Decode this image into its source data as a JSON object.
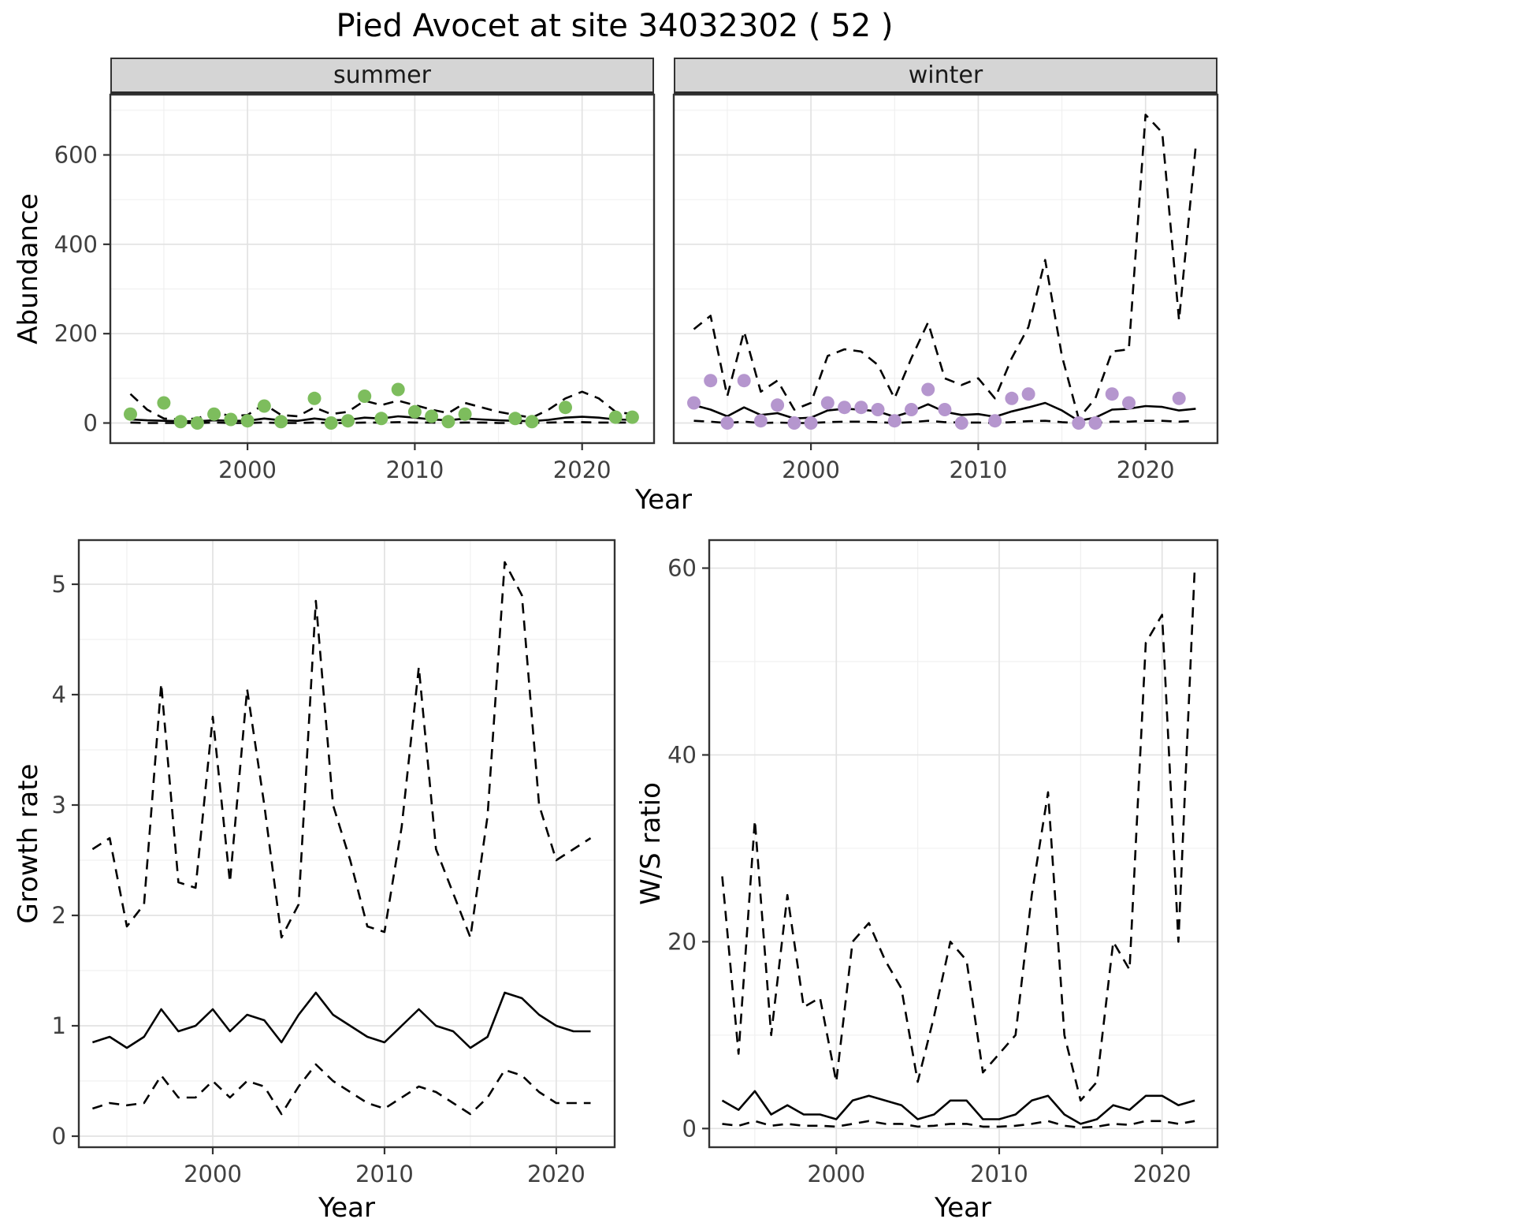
{
  "title": "Pied Avocet at site 34032302 ( 52 )",
  "colors": {
    "summer_points": "#7dbd5d",
    "winter_points": "#b596ce",
    "line": "#000000",
    "grid_major": "#e2e2e2",
    "grid_minor": "#f0f0f0",
    "strip_bg": "#d5d5d5",
    "panel_border": "#333333",
    "tick_label": "#404040"
  },
  "chart_data": [
    {
      "id": "abundance-summer",
      "type": "line",
      "facet_label": "summer",
      "xlabel": "Year",
      "ylabel": "Abundance",
      "xlim": [
        1991.8,
        2024.3
      ],
      "ylim": [
        -45,
        735
      ],
      "xticks": [
        2000,
        2010,
        2020
      ],
      "yticks": [
        0,
        200,
        400,
        600
      ],
      "grid": true,
      "legend": "none",
      "x": [
        1993,
        1994,
        1995,
        1996,
        1997,
        1998,
        1999,
        2000,
        2001,
        2002,
        2003,
        2004,
        2005,
        2006,
        2007,
        2008,
        2009,
        2010,
        2011,
        2012,
        2013,
        2014,
        2015,
        2016,
        2017,
        2018,
        2019,
        2020,
        2021,
        2022,
        2023
      ],
      "series": [
        {
          "name": "upper-ci",
          "style": "dashed",
          "y": [
            65,
            30,
            10,
            8,
            10,
            25,
            15,
            18,
            42,
            18,
            15,
            35,
            20,
            25,
            50,
            40,
            50,
            40,
            30,
            22,
            45,
            35,
            25,
            18,
            12,
            30,
            55,
            70,
            55,
            25,
            20
          ]
        },
        {
          "name": "model-median",
          "style": "solid",
          "y": [
            8,
            6,
            5,
            4,
            4,
            6,
            5,
            5,
            10,
            6,
            5,
            10,
            6,
            7,
            12,
            10,
            15,
            12,
            8,
            6,
            10,
            8,
            6,
            5,
            4,
            7,
            12,
            14,
            12,
            8,
            7
          ]
        },
        {
          "name": "lower-ci",
          "style": "dashed",
          "y": [
            1,
            0,
            0,
            0,
            0,
            1,
            0,
            0,
            1,
            0,
            0,
            1,
            0,
            0,
            1,
            1,
            2,
            1,
            1,
            0,
            1,
            1,
            0,
            0,
            0,
            1,
            2,
            2,
            1,
            1,
            1
          ]
        }
      ],
      "points": [
        {
          "name": "observed-summer-counts",
          "color_key": "summer_points",
          "x": [
            1993,
            1995,
            1996,
            1997,
            1998,
            1999,
            2000,
            2001,
            2002,
            2004,
            2005,
            2006,
            2007,
            2008,
            2009,
            2010,
            2011,
            2012,
            2013,
            2016,
            2017,
            2019,
            2022,
            2023
          ],
          "y": [
            20,
            45,
            3,
            0,
            20,
            8,
            5,
            38,
            3,
            55,
            0,
            5,
            60,
            10,
            75,
            25,
            15,
            3,
            20,
            10,
            3,
            35,
            13,
            13
          ]
        }
      ]
    },
    {
      "id": "abundance-winter",
      "type": "line",
      "facet_label": "winter",
      "xlabel": "Year",
      "ylabel": "Abundance",
      "xlim": [
        1991.8,
        2024.3
      ],
      "ylim": [
        -45,
        735
      ],
      "xticks": [
        2000,
        2010,
        2020
      ],
      "yticks": [
        0,
        200,
        400,
        600
      ],
      "grid": true,
      "legend": "none",
      "x": [
        1993,
        1994,
        1995,
        1996,
        1997,
        1998,
        1999,
        2000,
        2001,
        2002,
        2003,
        2004,
        2005,
        2006,
        2007,
        2008,
        2009,
        2010,
        2011,
        2012,
        2013,
        2014,
        2015,
        2016,
        2017,
        2018,
        2019,
        2020,
        2021,
        2022,
        2023
      ],
      "series": [
        {
          "name": "upper-ci",
          "style": "dashed",
          "y": [
            210,
            240,
            60,
            205,
            70,
            95,
            30,
            45,
            150,
            165,
            160,
            130,
            55,
            145,
            225,
            100,
            85,
            100,
            55,
            145,
            215,
            365,
            150,
            10,
            55,
            160,
            165,
            690,
            650,
            230,
            620
          ]
        },
        {
          "name": "model-median",
          "style": "solid",
          "y": [
            40,
            30,
            15,
            35,
            18,
            22,
            10,
            12,
            28,
            32,
            30,
            26,
            14,
            26,
            42,
            25,
            18,
            20,
            14,
            26,
            35,
            45,
            28,
            5,
            12,
            30,
            32,
            38,
            36,
            28,
            32
          ]
        },
        {
          "name": "lower-ci",
          "style": "dashed",
          "y": [
            5,
            3,
            0,
            3,
            0,
            1,
            0,
            0,
            2,
            3,
            3,
            2,
            0,
            2,
            5,
            2,
            1,
            1,
            0,
            2,
            4,
            5,
            2,
            0,
            0,
            3,
            3,
            5,
            5,
            3,
            5
          ]
        }
      ],
      "points": [
        {
          "name": "observed-winter-counts",
          "color_key": "winter_points",
          "x": [
            1993,
            1994,
            1995,
            1996,
            1997,
            1998,
            1999,
            2000,
            2001,
            2002,
            2003,
            2004,
            2005,
            2006,
            2007,
            2008,
            2009,
            2011,
            2012,
            2013,
            2016,
            2017,
            2018,
            2019,
            2022
          ],
          "y": [
            45,
            95,
            0,
            95,
            5,
            40,
            0,
            0,
            45,
            35,
            35,
            30,
            5,
            30,
            75,
            30,
            0,
            5,
            55,
            65,
            0,
            0,
            65,
            45,
            55
          ]
        }
      ]
    },
    {
      "id": "growth-rate",
      "type": "line",
      "facet_label": "",
      "xlabel": "Year",
      "ylabel": "Growth rate",
      "xlim": [
        1992.2,
        2023.4
      ],
      "ylim": [
        -0.1,
        5.4
      ],
      "xticks": [
        2000,
        2010,
        2020
      ],
      "yticks": [
        0,
        1,
        2,
        3,
        4,
        5
      ],
      "grid": true,
      "legend": "none",
      "x": [
        1993,
        1994,
        1995,
        1996,
        1997,
        1998,
        1999,
        2000,
        2001,
        2002,
        2003,
        2004,
        2005,
        2006,
        2007,
        2008,
        2009,
        2010,
        2011,
        2012,
        2013,
        2014,
        2015,
        2016,
        2017,
        2018,
        2019,
        2020,
        2021,
        2022
      ],
      "series": [
        {
          "name": "upper-ci",
          "style": "dashed",
          "y": [
            2.6,
            2.7,
            1.9,
            2.1,
            4.1,
            2.3,
            2.25,
            3.8,
            2.3,
            4.05,
            3.0,
            1.8,
            2.1,
            4.85,
            3.0,
            2.5,
            1.9,
            1.85,
            2.8,
            4.25,
            2.6,
            2.2,
            1.8,
            2.9,
            5.2,
            4.9,
            3.0,
            2.5,
            2.6,
            2.7
          ]
        },
        {
          "name": "model-median",
          "style": "solid",
          "y": [
            0.85,
            0.9,
            0.8,
            0.9,
            1.15,
            0.95,
            1.0,
            1.15,
            0.95,
            1.1,
            1.05,
            0.85,
            1.1,
            1.3,
            1.1,
            1.0,
            0.9,
            0.85,
            1.0,
            1.15,
            1.0,
            0.95,
            0.8,
            0.9,
            1.3,
            1.25,
            1.1,
            1.0,
            0.95,
            0.95
          ]
        },
        {
          "name": "lower-ci",
          "style": "dashed",
          "y": [
            0.25,
            0.3,
            0.28,
            0.3,
            0.55,
            0.35,
            0.35,
            0.5,
            0.35,
            0.5,
            0.45,
            0.2,
            0.45,
            0.65,
            0.5,
            0.4,
            0.3,
            0.25,
            0.35,
            0.45,
            0.4,
            0.3,
            0.2,
            0.35,
            0.6,
            0.55,
            0.4,
            0.3,
            0.3,
            0.3
          ]
        }
      ],
      "points": []
    },
    {
      "id": "ws-ratio",
      "type": "line",
      "facet_label": "",
      "xlabel": "Year",
      "ylabel": "W/S ratio",
      "xlim": [
        1992.2,
        2023.4
      ],
      "ylim": [
        -2,
        63
      ],
      "xticks": [
        2000,
        2010,
        2020
      ],
      "yticks": [
        0,
        20,
        40,
        60
      ],
      "grid": true,
      "legend": "none",
      "x": [
        1993,
        1994,
        1995,
        1996,
        1997,
        1998,
        1999,
        2000,
        2001,
        2002,
        2003,
        2004,
        2005,
        2006,
        2007,
        2008,
        2009,
        2010,
        2011,
        2012,
        2013,
        2014,
        2015,
        2016,
        2017,
        2018,
        2019,
        2020,
        2021,
        2022
      ],
      "series": [
        {
          "name": "upper-ci",
          "style": "dashed",
          "y": [
            27,
            8,
            33,
            10,
            25,
            13,
            14,
            5,
            20,
            22,
            18,
            15,
            5,
            12,
            20,
            18,
            6,
            8,
            10,
            25,
            36,
            10,
            3,
            5,
            20,
            17,
            52,
            55,
            20,
            60
          ]
        },
        {
          "name": "model-median",
          "style": "solid",
          "y": [
            3,
            2,
            4,
            1.5,
            2.5,
            1.5,
            1.5,
            1,
            3,
            3.5,
            3,
            2.5,
            1,
            1.5,
            3,
            3,
            1,
            1,
            1.5,
            3,
            3.5,
            1.5,
            0.5,
            1,
            2.5,
            2,
            3.5,
            3.5,
            2.5,
            3
          ]
        },
        {
          "name": "lower-ci",
          "style": "dashed",
          "y": [
            0.5,
            0.3,
            0.8,
            0.3,
            0.5,
            0.3,
            0.3,
            0.2,
            0.5,
            0.8,
            0.5,
            0.5,
            0.2,
            0.3,
            0.5,
            0.5,
            0.2,
            0.2,
            0.3,
            0.5,
            0.8,
            0.3,
            0.1,
            0.2,
            0.5,
            0.4,
            0.8,
            0.8,
            0.5,
            0.8
          ]
        }
      ],
      "points": []
    }
  ]
}
